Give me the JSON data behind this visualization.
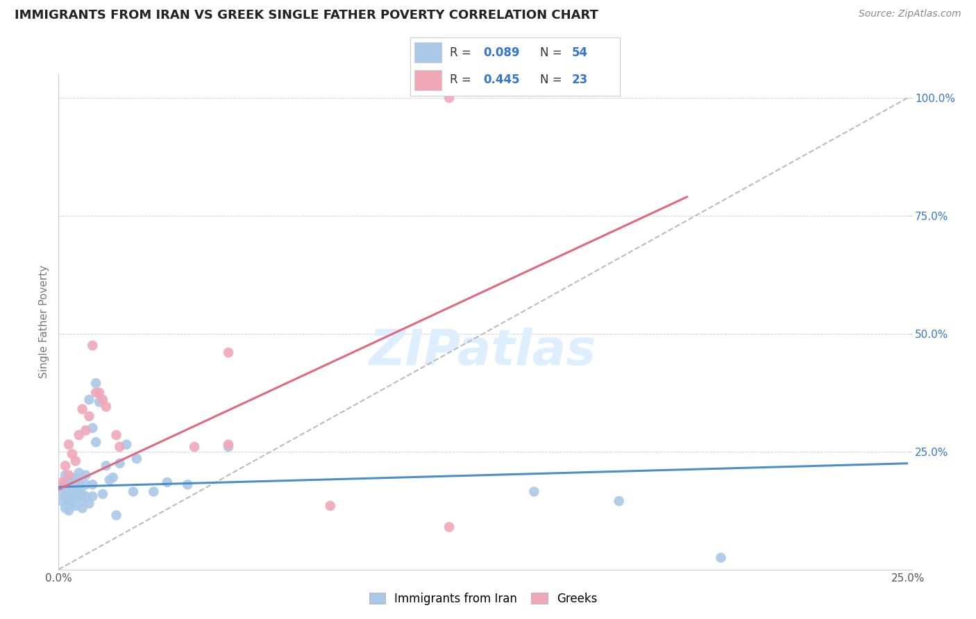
{
  "title": "IMMIGRANTS FROM IRAN VS GREEK SINGLE FATHER POVERTY CORRELATION CHART",
  "source": "Source: ZipAtlas.com",
  "ylabel": "Single Father Poverty",
  "xlim": [
    0.0,
    0.25
  ],
  "ylim": [
    0.0,
    1.05
  ],
  "yticks": [
    0.0,
    0.25,
    0.5,
    0.75,
    1.0
  ],
  "ytick_labels": [
    "",
    "25.0%",
    "50.0%",
    "75.0%",
    "100.0%"
  ],
  "xticks": [
    0.0,
    0.05,
    0.1,
    0.15,
    0.2,
    0.25
  ],
  "xtick_labels": [
    "0.0%",
    "",
    "",
    "",
    "",
    "25.0%"
  ],
  "legend_blue_R": "0.089",
  "legend_blue_N": "54",
  "legend_pink_R": "0.445",
  "legend_pink_N": "23",
  "legend_label_blue": "Immigrants from Iran",
  "legend_label_pink": "Greeks",
  "blue_color": "#aac8e8",
  "pink_color": "#f0a8b8",
  "line_blue_color": "#4a8fcc",
  "line_pink_color": "#e06880",
  "diagonal_color": "#bbbbbb",
  "text_color": "#3377cc",
  "blue_scatter_x": [
    0.001,
    0.001,
    0.001,
    0.002,
    0.002,
    0.002,
    0.002,
    0.003,
    0.003,
    0.003,
    0.003,
    0.004,
    0.004,
    0.004,
    0.004,
    0.005,
    0.005,
    0.005,
    0.005,
    0.005,
    0.006,
    0.006,
    0.006,
    0.006,
    0.007,
    0.007,
    0.007,
    0.008,
    0.008,
    0.008,
    0.009,
    0.009,
    0.01,
    0.01,
    0.01,
    0.011,
    0.011,
    0.012,
    0.013,
    0.014,
    0.015,
    0.016,
    0.017,
    0.018,
    0.02,
    0.022,
    0.023,
    0.028,
    0.032,
    0.038,
    0.05,
    0.14,
    0.165,
    0.195
  ],
  "blue_scatter_y": [
    0.175,
    0.16,
    0.145,
    0.2,
    0.18,
    0.155,
    0.13,
    0.185,
    0.165,
    0.145,
    0.125,
    0.19,
    0.175,
    0.16,
    0.14,
    0.195,
    0.185,
    0.17,
    0.155,
    0.135,
    0.205,
    0.185,
    0.17,
    0.155,
    0.16,
    0.145,
    0.13,
    0.155,
    0.2,
    0.18,
    0.36,
    0.14,
    0.3,
    0.18,
    0.155,
    0.395,
    0.27,
    0.355,
    0.16,
    0.22,
    0.19,
    0.195,
    0.115,
    0.225,
    0.265,
    0.165,
    0.235,
    0.165,
    0.185,
    0.18,
    0.26,
    0.165,
    0.145,
    0.025
  ],
  "pink_scatter_x": [
    0.001,
    0.002,
    0.003,
    0.003,
    0.004,
    0.005,
    0.006,
    0.007,
    0.008,
    0.009,
    0.01,
    0.011,
    0.012,
    0.013,
    0.014,
    0.017,
    0.018,
    0.04,
    0.05,
    0.08,
    0.115,
    0.05,
    0.115
  ],
  "pink_scatter_y": [
    0.185,
    0.22,
    0.265,
    0.2,
    0.245,
    0.23,
    0.285,
    0.34,
    0.295,
    0.325,
    0.475,
    0.375,
    0.375,
    0.36,
    0.345,
    0.285,
    0.26,
    0.26,
    0.265,
    0.135,
    1.0,
    0.46,
    0.09
  ],
  "blue_line_x": [
    0.0,
    0.25
  ],
  "blue_line_y": [
    0.175,
    0.225
  ],
  "pink_line_x": [
    0.0,
    0.185
  ],
  "pink_line_y": [
    0.17,
    0.79
  ],
  "diag_line_x": [
    0.0,
    0.25
  ],
  "diag_line_y": [
    0.0,
    1.0
  ],
  "watermark_text": "ZIPatlas",
  "watermark_color": "#ddeeff"
}
